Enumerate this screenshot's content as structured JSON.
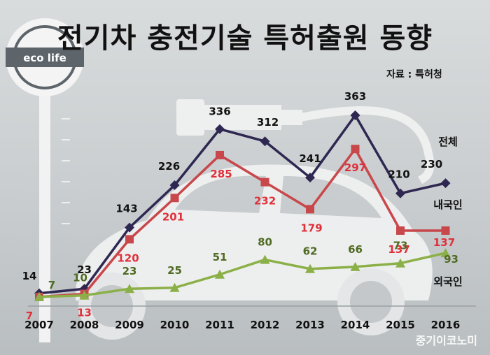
{
  "title": "전기차 충전기술 특허출원 동향",
  "source": "자료 : 특허청",
  "watermark": "중기이코노미",
  "sign_text": "eco life",
  "colors": {
    "total": "#2e2751",
    "domestic": "#c8474b",
    "foreign": "#8cb048",
    "domestic_label": "#e0303a",
    "foreign_label": "#4f6a22"
  },
  "chart_data": {
    "type": "line",
    "x": [
      "2007",
      "2008",
      "2009",
      "2010",
      "2011",
      "2012",
      "2013",
      "2014",
      "2015",
      "2016"
    ],
    "series": [
      {
        "name": "전체",
        "values": [
          14,
          23,
          143,
          226,
          336,
          312,
          241,
          363,
          210,
          230
        ]
      },
      {
        "name": "내국인",
        "values": [
          7,
          13,
          120,
          201,
          285,
          232,
          179,
          297,
          137,
          137
        ]
      },
      {
        "name": "외국인",
        "values": [
          7,
          10,
          23,
          25,
          51,
          80,
          62,
          66,
          73,
          93
        ]
      }
    ]
  }
}
